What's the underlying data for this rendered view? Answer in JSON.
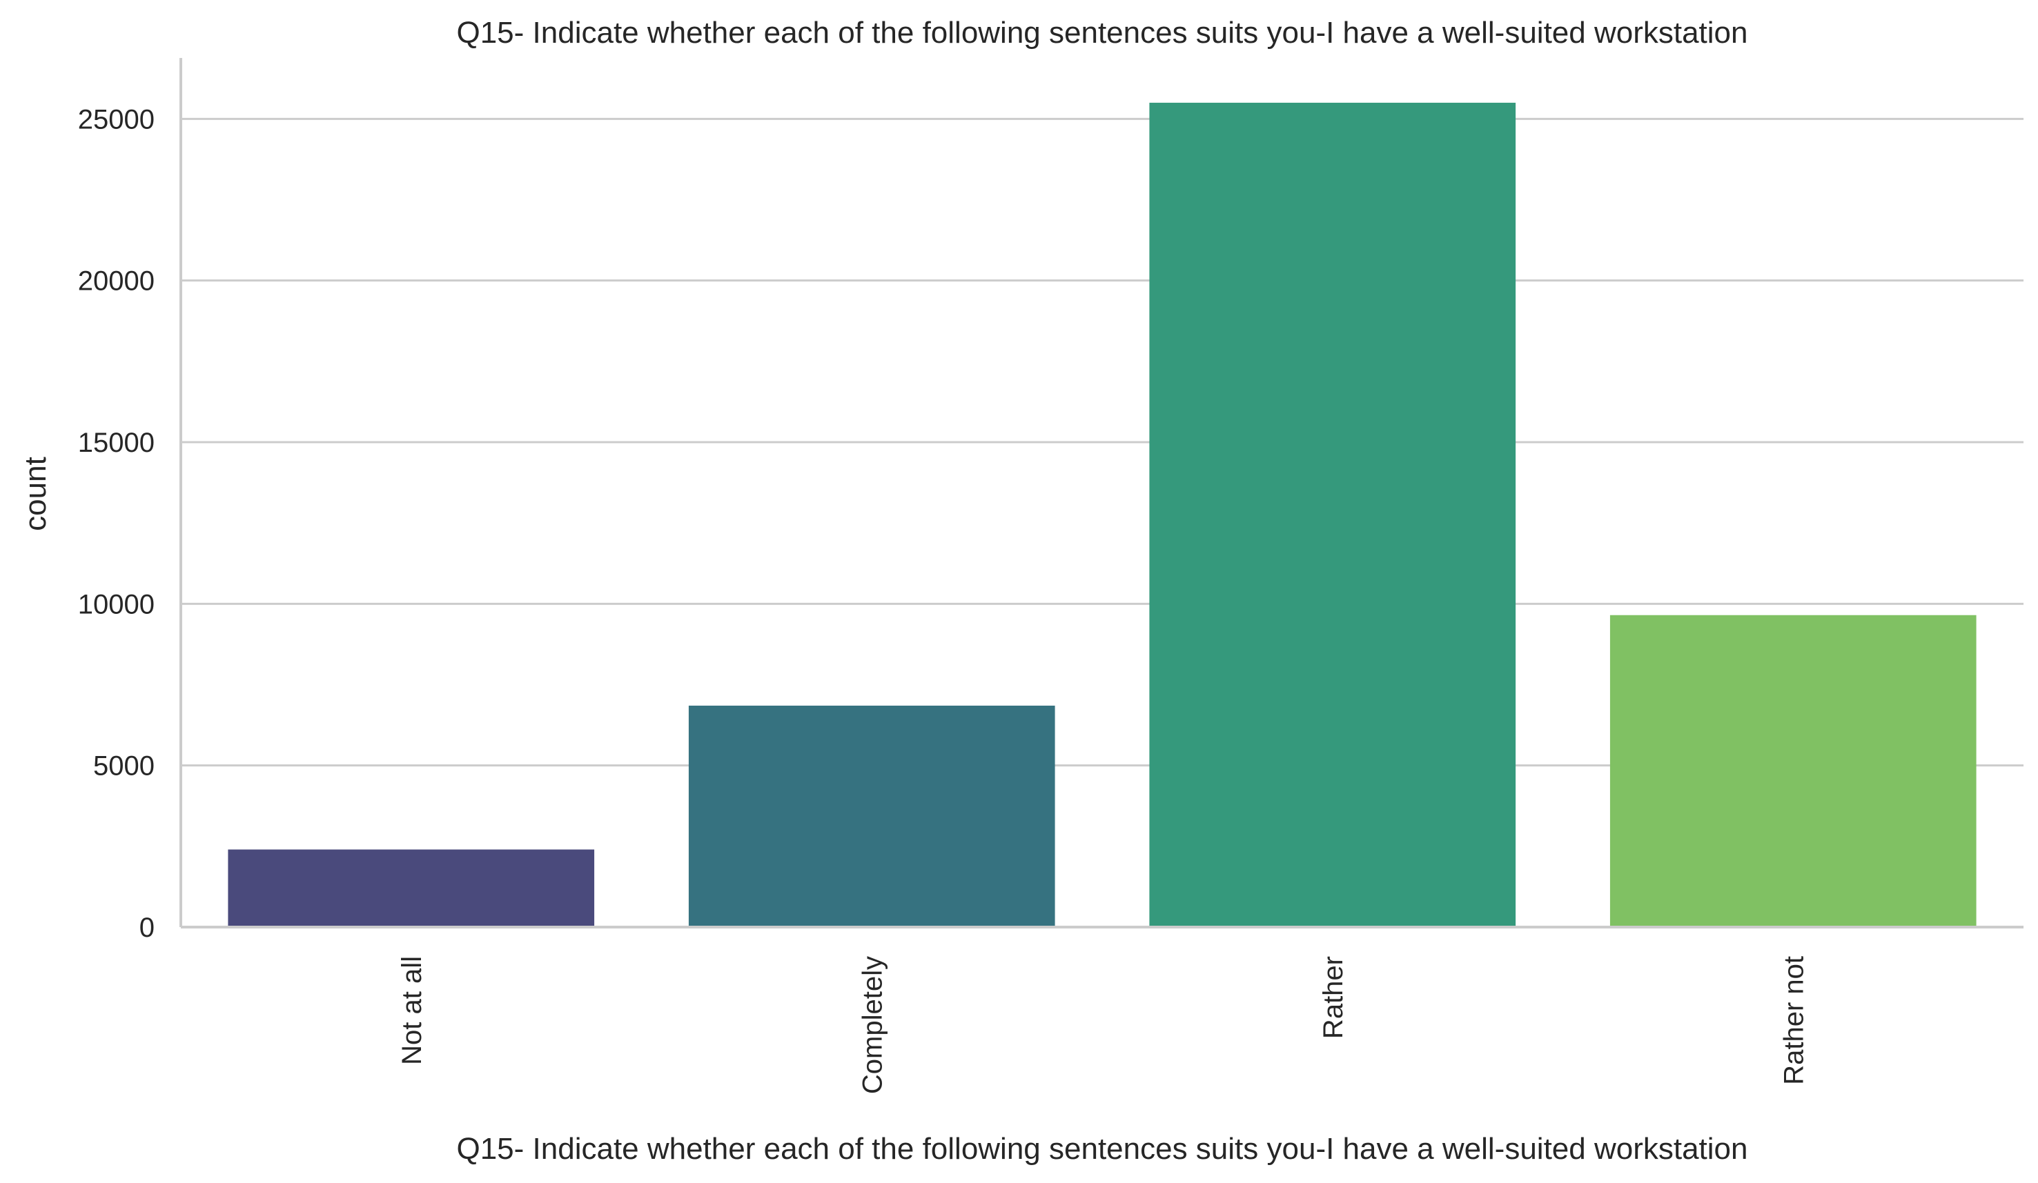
{
  "chart_data": {
    "type": "bar",
    "title": "Q15- Indicate whether each of the following sentences suits you-I have a well-suited workstation",
    "xlabel": "Q15- Indicate whether each of the following sentences suits you-I have a well-suited workstation",
    "ylabel": "count",
    "categories": [
      "Not at all",
      "Completely",
      "Rather",
      "Rather not"
    ],
    "values": [
      2400,
      6850,
      25500,
      9650
    ],
    "colors": [
      "#4a4a7c",
      "#367280",
      "#35997c",
      "#80c163"
    ],
    "ylim": [
      0,
      26800
    ],
    "yticks": [
      0,
      5000,
      10000,
      15000,
      20000,
      25000
    ],
    "grid": true,
    "legend": "none"
  }
}
